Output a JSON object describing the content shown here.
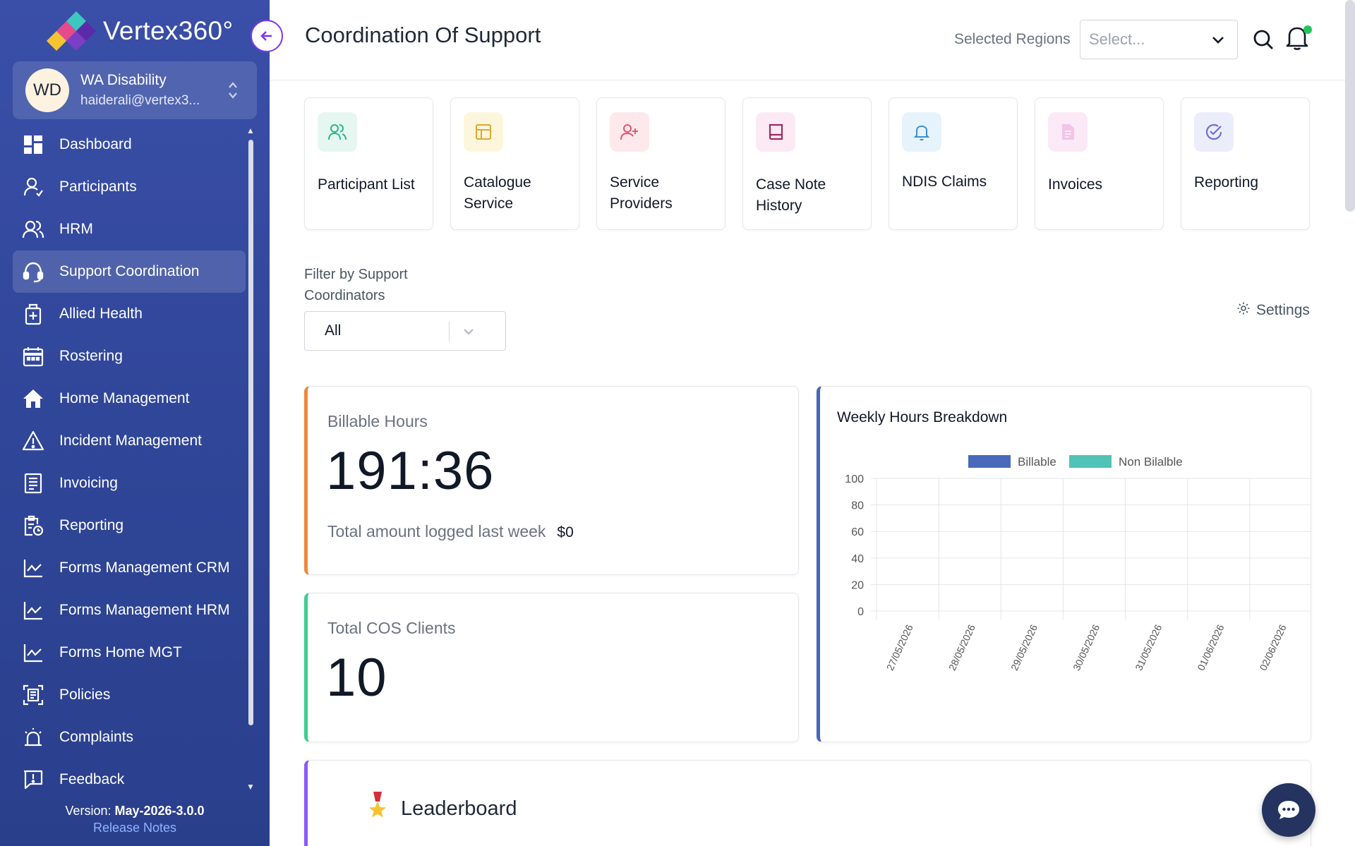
{
  "app": {
    "logo_text": "Vertex360°",
    "version_prefix": "Version:",
    "version": "May-2026-3.0.0",
    "release_notes": "Release Notes"
  },
  "org": {
    "initials": "WD",
    "name": "WA Disability",
    "email": "haiderali@vertex3..."
  },
  "sidebar": {
    "items": [
      {
        "label": "Dashboard",
        "icon": "dashboard-icon"
      },
      {
        "label": "Participants",
        "icon": "participants-icon"
      },
      {
        "label": "HRM",
        "icon": "hrm-icon"
      },
      {
        "label": "Support Coordination",
        "icon": "headset-icon",
        "active": true
      },
      {
        "label": "Allied Health",
        "icon": "allied-health-icon"
      },
      {
        "label": "Rostering",
        "icon": "calendar-icon"
      },
      {
        "label": "Home Management",
        "icon": "home-icon"
      },
      {
        "label": "Incident Management",
        "icon": "warning-icon"
      },
      {
        "label": "Invoicing",
        "icon": "invoice-icon"
      },
      {
        "label": "Reporting",
        "icon": "report-icon"
      },
      {
        "label": "Forms Management CRM",
        "icon": "line-chart-icon"
      },
      {
        "label": "Forms Management HRM",
        "icon": "line-chart-icon"
      },
      {
        "label": "Forms Home MGT",
        "icon": "line-chart-icon"
      },
      {
        "label": "Policies",
        "icon": "policy-icon"
      },
      {
        "label": "Complaints",
        "icon": "alarm-icon"
      },
      {
        "label": "Feedback",
        "icon": "feedback-icon"
      }
    ]
  },
  "header": {
    "title": "Coordination Of Support",
    "regions_label": "Selected Regions",
    "regions_placeholder": "Select..."
  },
  "tiles": [
    {
      "label": "Participant List",
      "icon": "users-icon",
      "bg": "#e6f7f1",
      "fg": "#2bb58a"
    },
    {
      "label": "Catalogue Service",
      "icon": "catalogue-icon",
      "bg": "#fdf6dc",
      "fg": "#e0a82e"
    },
    {
      "label": "Service Providers",
      "icon": "user-plus-icon",
      "bg": "#fde8ec",
      "fg": "#e0566f"
    },
    {
      "label": "Case Note History",
      "icon": "book-icon",
      "bg": "#fbeaf3",
      "fg": "#9b2d66"
    },
    {
      "label": "NDIS Claims",
      "icon": "bell-icon",
      "bg": "#e6f3fb",
      "fg": "#3a8fd0"
    },
    {
      "label": "Invoices",
      "icon": "document-icon",
      "bg": "#fbe9f7",
      "fg": "#e9a6dc"
    },
    {
      "label": "Reporting",
      "icon": "check-circle-icon",
      "bg": "#ecedfb",
      "fg": "#6b6fd6"
    }
  ],
  "filter": {
    "label": "Filter by Support Coordinators",
    "value": "All",
    "settings": "Settings"
  },
  "billable": {
    "label": "Billable Hours",
    "value": "191:36",
    "sub_label": "Total amount logged last week",
    "amount": "$0"
  },
  "clients": {
    "label": "Total COS Clients",
    "value": "10"
  },
  "leaderboard": {
    "title": "Leaderboard"
  },
  "colors": {
    "billable": "#4a69bd",
    "non_billable": "#4fc3b6"
  },
  "chart_data": {
    "type": "bar",
    "title": "Weekly Hours Breakdown",
    "categories": [
      "27/05/2026",
      "28/05/2026",
      "29/05/2026",
      "30/05/2026",
      "31/05/2026",
      "01/06/2026",
      "02/06/2026"
    ],
    "series": [
      {
        "name": "Billable",
        "values": [
          0,
          0,
          0,
          0,
          0,
          0,
          0
        ],
        "color": "#4a69bd"
      },
      {
        "name": "Non Bilalble",
        "values": [
          0,
          0,
          0,
          0,
          0,
          0,
          0
        ],
        "color": "#4fc3b6"
      }
    ],
    "ylim": [
      0,
      100
    ],
    "yticks": [
      0,
      20,
      40,
      60,
      80,
      100
    ],
    "legend": "top",
    "grid": true
  }
}
